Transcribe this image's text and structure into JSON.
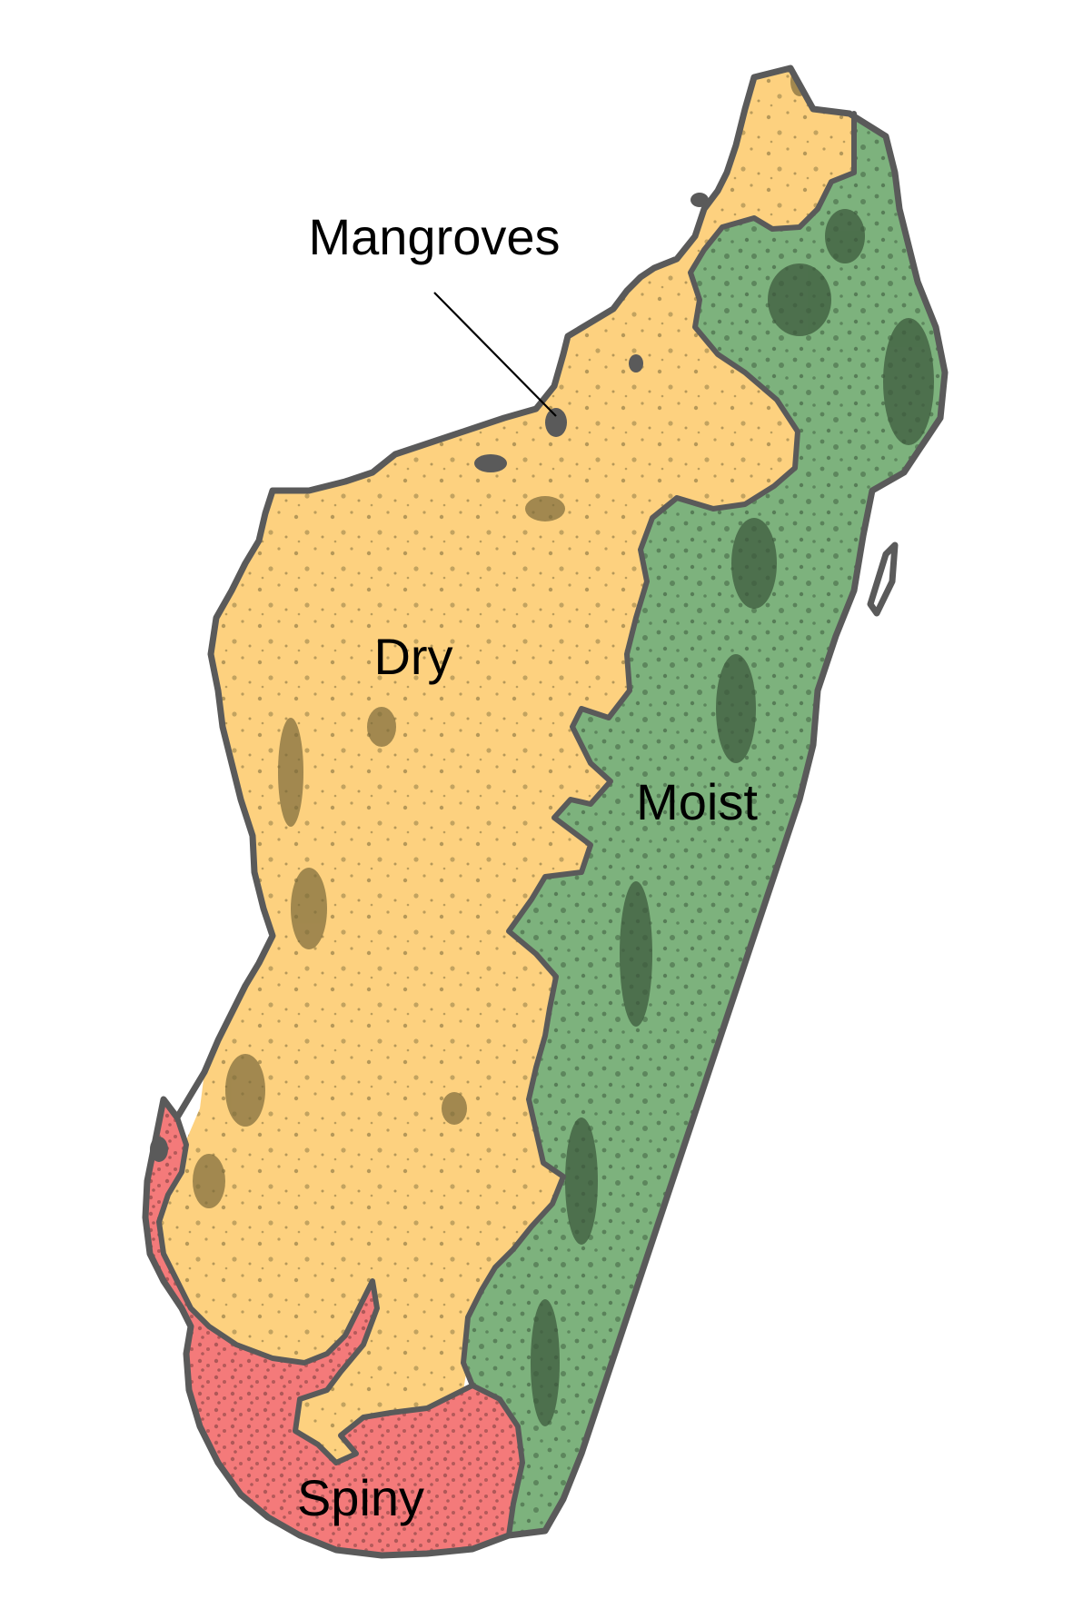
{
  "map": {
    "regions": [
      {
        "id": "dry",
        "label": "Dry",
        "color": "#fdd17f",
        "forest_color": "#7a6a3a"
      },
      {
        "id": "moist",
        "label": "Moist",
        "color": "#7db27d",
        "forest_color": "#3d5a3d"
      },
      {
        "id": "spiny",
        "label": "Spiny",
        "color": "#f47a7a",
        "forest_color": "#8b4545"
      },
      {
        "id": "mangroves",
        "label": "Mangroves",
        "color": "#5a5a5a"
      }
    ],
    "outline_color": "#5a5a5a",
    "background_color": "#ffffff"
  }
}
